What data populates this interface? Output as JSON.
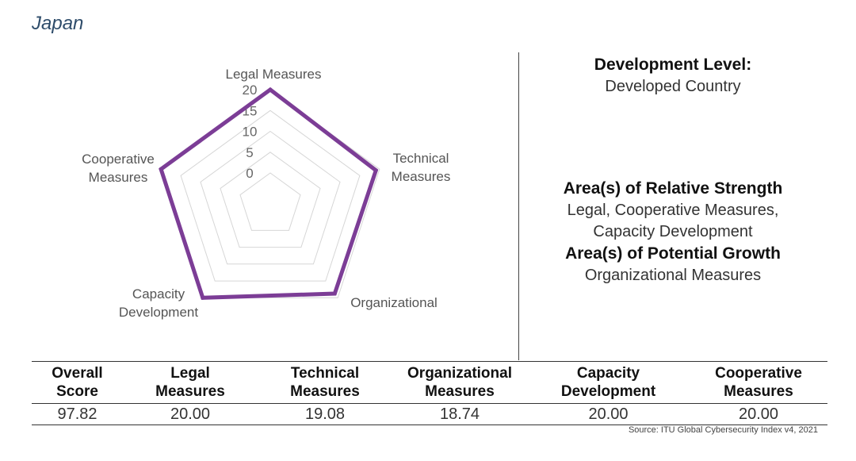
{
  "country": "Japan",
  "info": {
    "development_label": "Development Level:",
    "development_value": "Developed Country",
    "strength_label": "Area(s) of Relative Strength",
    "strength_value_line1": "Legal, Cooperative Measures,",
    "strength_value_line2": "Capacity Development",
    "growth_label": "Area(s) of Potential Growth",
    "growth_value": "Organizational Measures"
  },
  "table": {
    "headers": [
      [
        "Overall",
        "Score"
      ],
      [
        "Legal",
        "Measures"
      ],
      [
        "Technical",
        "Measures"
      ],
      [
        "Organizational",
        "Measures"
      ],
      [
        "Capacity",
        "Development"
      ],
      [
        "Cooperative",
        "Measures"
      ]
    ],
    "values": [
      "97.82",
      "20.00",
      "19.08",
      "18.74",
      "20.00",
      "20.00"
    ]
  },
  "source": "Source: ITU Global Cybersecurity Index v4, 2021",
  "colors": {
    "series": "#7c3d96",
    "title": "#2f4d6b",
    "grid": "#d6d6d6"
  },
  "chart_data": {
    "type": "radar",
    "categories": [
      [
        "Legal Measures"
      ],
      [
        "Technical",
        "Measures"
      ],
      [
        "Organizational"
      ],
      [
        "Capacity",
        "Development"
      ],
      [
        "Cooperative",
        "Measures"
      ]
    ],
    "ticks": [
      "0",
      "5",
      "10",
      "15",
      "20"
    ],
    "range": [
      0,
      20
    ],
    "series": [
      {
        "name": "Japan",
        "values": [
          20.0,
          19.08,
          18.74,
          20.0,
          20.0
        ]
      }
    ]
  }
}
